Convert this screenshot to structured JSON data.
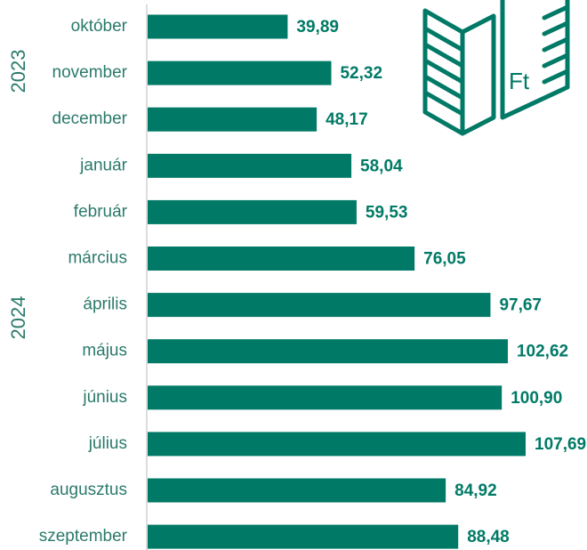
{
  "chart_data": {
    "type": "bar",
    "orientation": "horizontal",
    "color": "#007a66",
    "year_labels": [
      "2023",
      "2024"
    ],
    "icon_text": "Ft",
    "categories": [
      "október",
      "november",
      "december",
      "január",
      "február",
      "március",
      "április",
      "május",
      "június",
      "július",
      "augusztus",
      "szeptember"
    ],
    "values": [
      39.89,
      52.32,
      48.17,
      58.04,
      59.53,
      76.05,
      97.67,
      102.62,
      100.9,
      107.69,
      84.92,
      88.48
    ],
    "value_labels": [
      "39,89",
      "52,32",
      "48,17",
      "58,04",
      "59,53",
      "76,05",
      "97,67",
      "102,62",
      "100,90",
      "107,69",
      "84,92",
      "88,48"
    ]
  }
}
